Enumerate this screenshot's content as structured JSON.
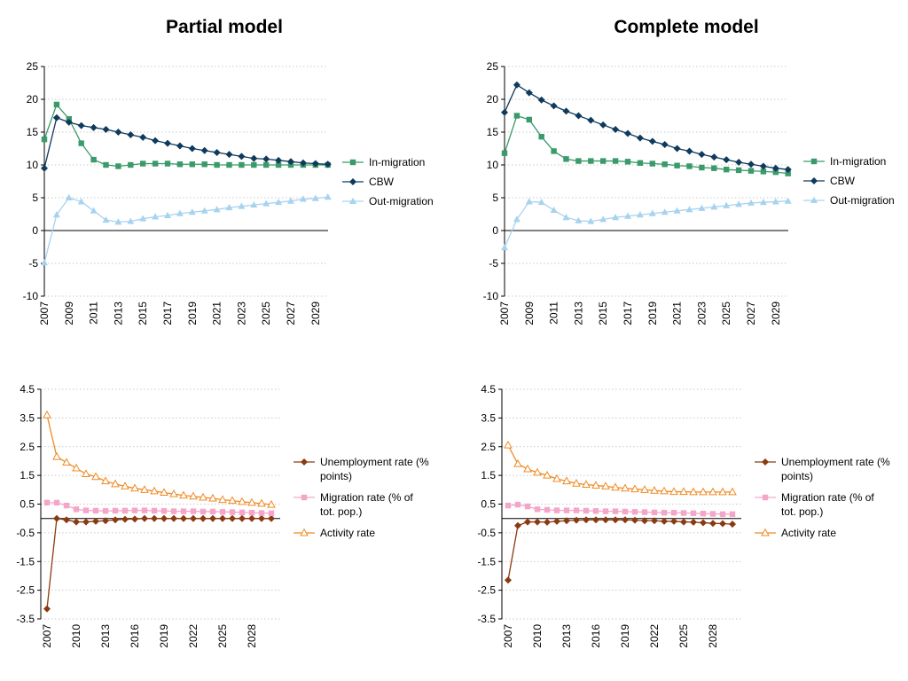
{
  "titles": {
    "left": "Partial model",
    "right": "Complete model"
  },
  "chart_data": [
    {
      "id": "migration-partial",
      "type": "line",
      "panel": "Partial model",
      "x": [
        2007,
        2008,
        2009,
        2010,
        2011,
        2012,
        2013,
        2014,
        2015,
        2016,
        2017,
        2018,
        2019,
        2020,
        2021,
        2022,
        2023,
        2024,
        2025,
        2026,
        2027,
        2028,
        2029,
        2030
      ],
      "ylim": [
        -10,
        25
      ],
      "yticks": [
        -10,
        -5,
        0,
        5,
        10,
        15,
        20,
        25
      ],
      "xtick_labels": [
        "2007",
        "2009",
        "2011",
        "2013",
        "2015",
        "2017",
        "2019",
        "2021",
        "2023",
        "2025",
        "2027",
        "2029"
      ],
      "grid": "horizontal dotted",
      "legend": "right",
      "series": [
        {
          "name": "In-migration",
          "color": "#3a9a6a",
          "marker": "square",
          "values": [
            13.9,
            19.2,
            17.0,
            13.3,
            10.8,
            10.0,
            9.8,
            10.0,
            10.2,
            10.2,
            10.2,
            10.1,
            10.1,
            10.1,
            10.0,
            10.0,
            10.0,
            10.0,
            10.0,
            10.0,
            10.0,
            10.0,
            10.0,
            10.0
          ]
        },
        {
          "name": "CBW",
          "color": "#0f3a5c",
          "marker": "diamond",
          "values": [
            9.5,
            17.2,
            16.5,
            16.0,
            15.7,
            15.4,
            15.0,
            14.6,
            14.2,
            13.7,
            13.3,
            12.9,
            12.5,
            12.2,
            11.9,
            11.6,
            11.3,
            11.0,
            10.9,
            10.7,
            10.5,
            10.3,
            10.2,
            10.1
          ]
        },
        {
          "name": "Out-migration",
          "color": "#a7d3ef",
          "marker": "triangle",
          "values": [
            -4.9,
            2.4,
            5.0,
            4.4,
            3.0,
            1.6,
            1.3,
            1.4,
            1.8,
            2.1,
            2.3,
            2.6,
            2.8,
            3.0,
            3.2,
            3.5,
            3.7,
            3.9,
            4.1,
            4.3,
            4.5,
            4.8,
            4.9,
            5.1
          ]
        }
      ]
    },
    {
      "id": "migration-complete",
      "type": "line",
      "panel": "Complete model",
      "x": [
        2007,
        2008,
        2009,
        2010,
        2011,
        2012,
        2013,
        2014,
        2015,
        2016,
        2017,
        2018,
        2019,
        2020,
        2021,
        2022,
        2023,
        2024,
        2025,
        2026,
        2027,
        2028,
        2029,
        2030
      ],
      "ylim": [
        -10,
        25
      ],
      "yticks": [
        -10,
        -5,
        0,
        5,
        10,
        15,
        20,
        25
      ],
      "xtick_labels": [
        "2007",
        "2009",
        "2011",
        "2013",
        "2015",
        "2017",
        "2019",
        "2021",
        "2023",
        "2025",
        "2027",
        "2029"
      ],
      "grid": "horizontal dotted",
      "legend": "right",
      "series": [
        {
          "name": "In-migration",
          "color": "#3a9a6a",
          "marker": "square",
          "values": [
            11.8,
            17.5,
            16.9,
            14.3,
            12.1,
            10.9,
            10.6,
            10.6,
            10.6,
            10.6,
            10.5,
            10.3,
            10.2,
            10.1,
            9.9,
            9.8,
            9.6,
            9.5,
            9.3,
            9.2,
            9.1,
            9.0,
            8.9,
            8.7
          ]
        },
        {
          "name": "CBW",
          "color": "#0f3a5c",
          "marker": "diamond",
          "values": [
            18.0,
            22.2,
            21.0,
            19.9,
            19.0,
            18.2,
            17.5,
            16.8,
            16.1,
            15.4,
            14.8,
            14.1,
            13.6,
            13.1,
            12.5,
            12.1,
            11.6,
            11.2,
            10.8,
            10.4,
            10.1,
            9.8,
            9.5,
            9.3
          ]
        },
        {
          "name": "Out-migration",
          "color": "#a7d3ef",
          "marker": "triangle",
          "values": [
            -2.6,
            1.7,
            4.4,
            4.3,
            3.1,
            2.0,
            1.5,
            1.4,
            1.7,
            2.0,
            2.2,
            2.4,
            2.6,
            2.8,
            3.0,
            3.2,
            3.4,
            3.6,
            3.8,
            4.0,
            4.2,
            4.3,
            4.4,
            4.5
          ]
        }
      ]
    },
    {
      "id": "labour-partial",
      "type": "line",
      "panel": "Partial model",
      "x": [
        2007,
        2008,
        2009,
        2010,
        2011,
        2012,
        2013,
        2014,
        2015,
        2016,
        2017,
        2018,
        2019,
        2020,
        2021,
        2022,
        2023,
        2024,
        2025,
        2026,
        2027,
        2028,
        2029,
        2030
      ],
      "ylim": [
        -3.5,
        4.5
      ],
      "yticks": [
        -3.5,
        -2.5,
        -1.5,
        -0.5,
        0.5,
        1.5,
        2.5,
        3.5,
        4.5
      ],
      "xtick_labels": [
        "2007",
        "2010",
        "2013",
        "2016",
        "2019",
        "2022",
        "2025",
        "2028"
      ],
      "grid": "horizontal dotted",
      "legend": "right",
      "series": [
        {
          "name": "Unemployment rate (% points)",
          "color": "#8b3a10",
          "marker": "diamond",
          "values": [
            -3.15,
            0.0,
            -0.05,
            -0.12,
            -0.12,
            -0.1,
            -0.08,
            -0.05,
            -0.03,
            -0.02,
            0.0,
            0.0,
            0.0,
            0.0,
            0.0,
            0.0,
            0.0,
            0.0,
            0.0,
            0.0,
            0.0,
            0.0,
            0.0,
            0.0
          ]
        },
        {
          "name": "Migration rate (% of tot. pop.)",
          "color": "#f4a6c8",
          "marker": "square",
          "values": [
            0.55,
            0.55,
            0.45,
            0.32,
            0.28,
            0.27,
            0.26,
            0.27,
            0.27,
            0.28,
            0.28,
            0.27,
            0.26,
            0.25,
            0.25,
            0.25,
            0.24,
            0.24,
            0.23,
            0.22,
            0.21,
            0.2,
            0.19,
            0.18
          ]
        },
        {
          "name": "Activity rate",
          "color": "#f08a24",
          "marker": "triangle-open",
          "values": [
            3.6,
            2.15,
            1.95,
            1.75,
            1.55,
            1.45,
            1.3,
            1.2,
            1.12,
            1.05,
            1.0,
            0.95,
            0.9,
            0.85,
            0.8,
            0.77,
            0.73,
            0.7,
            0.65,
            0.62,
            0.58,
            0.55,
            0.52,
            0.48
          ]
        }
      ]
    },
    {
      "id": "labour-complete",
      "type": "line",
      "panel": "Complete model",
      "x": [
        2007,
        2008,
        2009,
        2010,
        2011,
        2012,
        2013,
        2014,
        2015,
        2016,
        2017,
        2018,
        2019,
        2020,
        2021,
        2022,
        2023,
        2024,
        2025,
        2026,
        2027,
        2028,
        2029,
        2030
      ],
      "ylim": [
        -3.5,
        4.5
      ],
      "yticks": [
        -3.5,
        -2.5,
        -1.5,
        -0.5,
        0.5,
        1.5,
        2.5,
        3.5,
        4.5
      ],
      "xtick_labels": [
        "2007",
        "2010",
        "2013",
        "2016",
        "2019",
        "2022",
        "2025",
        "2028"
      ],
      "grid": "horizontal dotted",
      "legend": "right",
      "series": [
        {
          "name": "Unemployment rate (% points)",
          "color": "#8b3a10",
          "marker": "diamond",
          "values": [
            -2.15,
            -0.25,
            -0.12,
            -0.12,
            -0.13,
            -0.1,
            -0.08,
            -0.06,
            -0.05,
            -0.05,
            -0.05,
            -0.05,
            -0.05,
            -0.06,
            -0.08,
            -0.08,
            -0.1,
            -0.1,
            -0.12,
            -0.13,
            -0.15,
            -0.17,
            -0.18,
            -0.2
          ]
        },
        {
          "name": "Migration rate (% of tot. pop.)",
          "color": "#f4a6c8",
          "marker": "square",
          "values": [
            0.45,
            0.48,
            0.42,
            0.32,
            0.3,
            0.28,
            0.28,
            0.28,
            0.27,
            0.26,
            0.25,
            0.25,
            0.24,
            0.23,
            0.22,
            0.21,
            0.2,
            0.2,
            0.19,
            0.18,
            0.17,
            0.16,
            0.15,
            0.15
          ]
        },
        {
          "name": "Activity rate",
          "color": "#f08a24",
          "marker": "triangle-open",
          "values": [
            2.55,
            1.9,
            1.72,
            1.6,
            1.5,
            1.38,
            1.3,
            1.22,
            1.18,
            1.15,
            1.12,
            1.08,
            1.05,
            1.02,
            1.0,
            0.97,
            0.95,
            0.93,
            0.93,
            0.92,
            0.92,
            0.92,
            0.92,
            0.92
          ]
        }
      ]
    }
  ]
}
